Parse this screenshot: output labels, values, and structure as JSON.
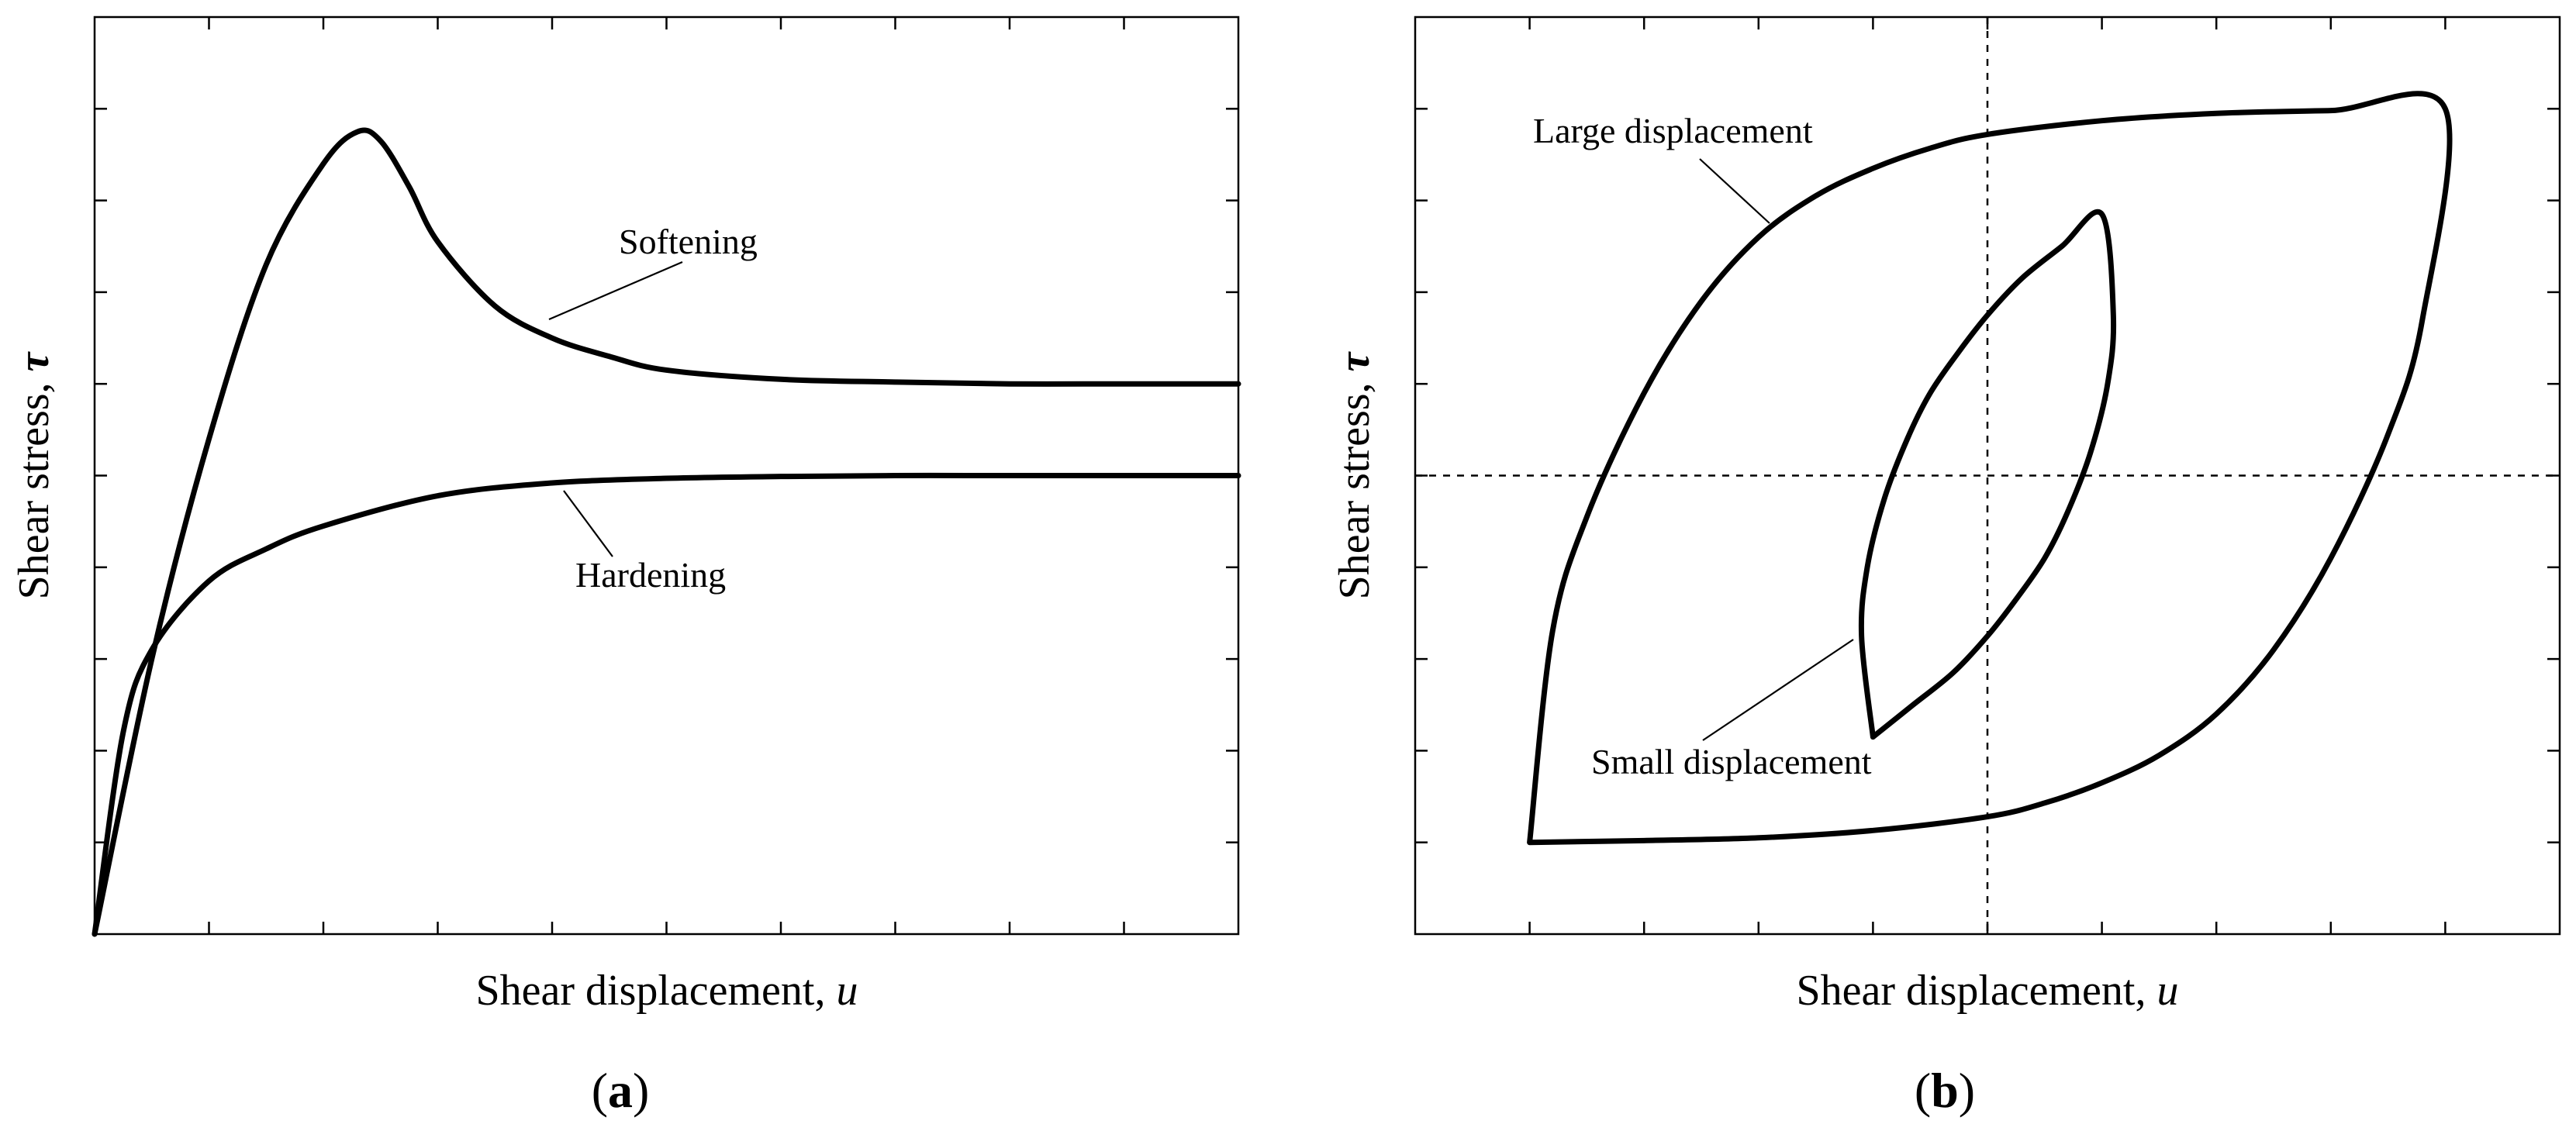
{
  "chart_data": [
    {
      "type": "line",
      "panel_label": "a",
      "xlabel": "Shear displacement, ",
      "xlabel_symbol": "u",
      "ylabel": "Shear stress, ",
      "ylabel_symbol": "τ",
      "xlim": [
        0,
        10
      ],
      "ylim": [
        0,
        10
      ],
      "x_ticks": 10,
      "y_ticks": 10,
      "tick_labels": false,
      "grid": false,
      "series": [
        {
          "annotation": "Softening",
          "x": [
            0,
            0.5,
            1.0,
            1.5,
            2.0,
            2.3,
            2.5,
            2.75,
            3.0,
            3.5,
            4.0,
            4.5,
            5.0,
            6.0,
            7.0,
            8.0,
            9.0,
            10.0
          ],
          "y": [
            0,
            3.0,
            5.4,
            7.3,
            8.4,
            8.75,
            8.65,
            8.15,
            7.55,
            6.85,
            6.5,
            6.3,
            6.15,
            6.05,
            6.02,
            6.0,
            6.0,
            6.0
          ]
        },
        {
          "annotation": "Hardening",
          "x": [
            0,
            0.25,
            0.5,
            1.0,
            1.5,
            2.0,
            3.0,
            4.0,
            5.0,
            6.0,
            7.0,
            8.0,
            9.0,
            10.0
          ],
          "y": [
            0,
            2.2,
            3.1,
            3.85,
            4.2,
            4.45,
            4.78,
            4.92,
            4.97,
            4.99,
            5.0,
            5.0,
            5.0,
            5.0
          ]
        }
      ]
    },
    {
      "type": "line",
      "panel_label": "b",
      "xlabel": "Shear displacement, ",
      "xlabel_symbol": "u",
      "ylabel": "Shear stress, ",
      "ylabel_symbol": "τ",
      "xlim": [
        -5,
        5
      ],
      "ylim": [
        -5,
        5
      ],
      "x_ticks": 10,
      "y_ticks": 10,
      "tick_labels": false,
      "grid": false,
      "reference_lines": {
        "x": 0,
        "y": 0,
        "style": "dashed"
      },
      "series": [
        {
          "annotation": "Large displacement",
          "x": [
            -4,
            -3.8,
            -3.5,
            -3,
            -2.5,
            -2,
            -1.5,
            -1,
            -0.5,
            0,
            1,
            2,
            3,
            4,
            3.8,
            3.5,
            3,
            2.5,
            2,
            1.5,
            1,
            0.5,
            0,
            -1,
            -2,
            -3,
            -4
          ],
          "y": [
            -4,
            -1.7,
            -0.45,
            0.9,
            1.9,
            2.6,
            3.05,
            3.35,
            3.57,
            3.72,
            3.87,
            3.95,
            3.98,
            4.0,
            1.7,
            0.45,
            -0.9,
            -1.9,
            -2.6,
            -3.05,
            -3.35,
            -3.57,
            -3.72,
            -3.87,
            -3.95,
            -3.98,
            -4.0
          ]
        },
        {
          "annotation": "Small displacement",
          "x": [
            -1,
            -1.1,
            -1.05,
            -0.9,
            -0.7,
            -0.5,
            -0.25,
            0,
            0.3,
            0.65,
            1,
            1.1,
            1.05,
            0.9,
            0.7,
            0.5,
            0.25,
            0,
            -0.3,
            -0.65,
            -1
          ],
          "y": [
            -2.85,
            -1.75,
            -1.0,
            -0.25,
            0.4,
            0.9,
            1.35,
            1.75,
            2.15,
            2.5,
            2.85,
            1.75,
            1.0,
            0.25,
            -0.4,
            -0.9,
            -1.35,
            -1.75,
            -2.15,
            -2.5,
            -2.85
          ]
        }
      ]
    }
  ]
}
